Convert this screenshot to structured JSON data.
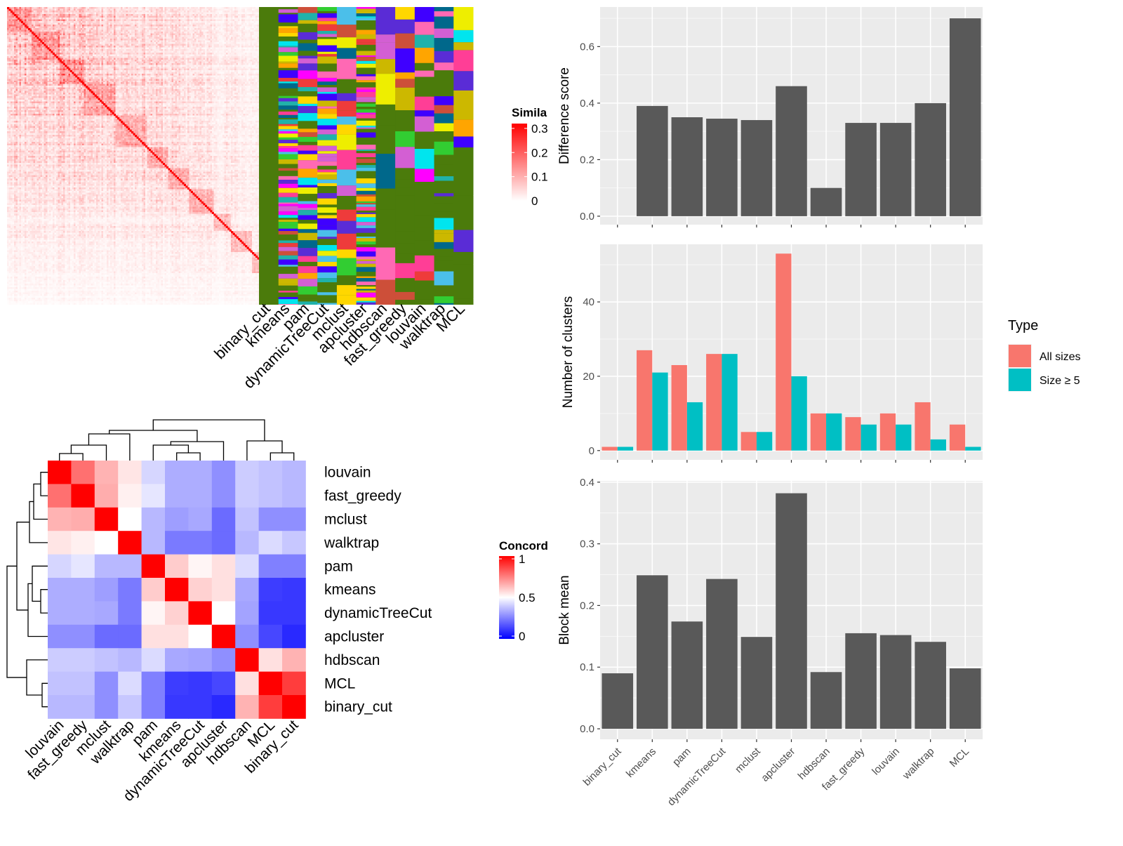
{
  "chart_data": [
    {
      "type": "heatmap",
      "panel": "similarity-heatmap",
      "legend_title": "Simila",
      "legend_ticks": [
        0.3,
        0.2,
        0.1,
        0
      ],
      "legend_tick_labels": [
        "0.3",
        "0.2",
        "0.1",
        "0"
      ],
      "n_terms": 170,
      "colors": {
        "low": "#ffffff",
        "high": "#ff0000"
      }
    },
    {
      "type": "heatmap",
      "panel": "cluster-assignment-heatmap",
      "methods": [
        "binary_cut",
        "kmeans",
        "pam",
        "dynamicTreeCut",
        "mclust",
        "apcluster",
        "hdbscan",
        "fast_greedy",
        "louvain",
        "walktrap",
        "MCL"
      ],
      "colors": {
        "background": "#4b7b0b",
        "palette": [
          "#ff00ff",
          "#00e5ee",
          "#4b7b0b",
          "#ffa500",
          "#5a2cd6",
          "#ee3b3b",
          "#d35fd3",
          "#00688b",
          "#eeee00",
          "#4bbfea",
          "#ccb800",
          "#ff69b4",
          "#32cd32",
          "#cd4f39",
          "#20b2aa",
          "#3f00ff",
          "#ffd700",
          "#ff3e96"
        ]
      }
    },
    {
      "type": "heatmap",
      "panel": "concordance-heatmap",
      "legend_title": "Concord",
      "legend_ticks": [
        1,
        0.5,
        0
      ],
      "legend_tick_labels": [
        "1",
        "0.5",
        "0"
      ],
      "rows": [
        "louvain",
        "fast_greedy",
        "mclust",
        "walktrap",
        "pam",
        "kmeans",
        "dynamicTreeCut",
        "apcluster",
        "hdbscan",
        "MCL",
        "binary_cut"
      ],
      "columns": [
        "louvain",
        "fast_greedy",
        "mclust",
        "walktrap",
        "pam",
        "kmeans",
        "dynamicTreeCut",
        "apcluster",
        "hdbscan",
        "MCL",
        "binary_cut"
      ],
      "values": [
        [
          1.0,
          0.78,
          0.65,
          0.55,
          0.42,
          0.34,
          0.34,
          0.28,
          0.4,
          0.38,
          0.36
        ],
        [
          0.78,
          1.0,
          0.66,
          0.53,
          0.45,
          0.34,
          0.34,
          0.28,
          0.4,
          0.38,
          0.36
        ],
        [
          0.65,
          0.66,
          1.0,
          0.5,
          0.36,
          0.31,
          0.33,
          0.21,
          0.38,
          0.28,
          0.28
        ],
        [
          0.55,
          0.53,
          0.5,
          1.0,
          0.36,
          0.24,
          0.24,
          0.21,
          0.36,
          0.43,
          0.39
        ],
        [
          0.42,
          0.45,
          0.36,
          0.36,
          1.0,
          0.6,
          0.52,
          0.56,
          0.43,
          0.25,
          0.25
        ],
        [
          0.34,
          0.34,
          0.31,
          0.24,
          0.6,
          1.0,
          0.59,
          0.56,
          0.33,
          0.12,
          0.11
        ],
        [
          0.34,
          0.34,
          0.33,
          0.24,
          0.52,
          0.59,
          1.0,
          0.5,
          0.32,
          0.11,
          0.11
        ],
        [
          0.28,
          0.28,
          0.21,
          0.21,
          0.56,
          0.56,
          0.5,
          1.0,
          0.28,
          0.14,
          0.08
        ],
        [
          0.4,
          0.4,
          0.38,
          0.36,
          0.43,
          0.33,
          0.32,
          0.28,
          1.0,
          0.56,
          0.65
        ],
        [
          0.38,
          0.38,
          0.28,
          0.43,
          0.25,
          0.12,
          0.11,
          0.14,
          0.56,
          1.0,
          0.88
        ],
        [
          0.36,
          0.36,
          0.28,
          0.39,
          0.25,
          0.11,
          0.11,
          0.08,
          0.65,
          0.88,
          1.0
        ]
      ],
      "colors": {
        "low": "#0000ff",
        "mid": "#ffffff",
        "high": "#ff0000"
      }
    },
    {
      "type": "bar",
      "panel": "difference-score",
      "categories": [
        "binary_cut",
        "kmeans",
        "pam",
        "dynamicTreeCut",
        "mclust",
        "apcluster",
        "hdbscan",
        "fast_greedy",
        "louvain",
        "walktrap",
        "MCL"
      ],
      "values": [
        0.0,
        0.39,
        0.35,
        0.345,
        0.34,
        0.46,
        0.1,
        0.33,
        0.33,
        0.4,
        0.7
      ],
      "ylabel": "Difference score",
      "ylim": [
        -0.03,
        0.74
      ],
      "yticks": [
        0.0,
        0.2,
        0.4,
        0.6
      ],
      "ytick_labels": [
        "0.0",
        "0.2",
        "0.4",
        "0.6"
      ],
      "grid": true,
      "colors": {
        "bar": "#595959",
        "panel": "#ebebeb",
        "grid": "#ffffff"
      }
    },
    {
      "type": "bar",
      "panel": "number-of-clusters",
      "categories": [
        "binary_cut",
        "kmeans",
        "pam",
        "dynamicTreeCut",
        "mclust",
        "apcluster",
        "hdbscan",
        "fast_greedy",
        "louvain",
        "walktrap",
        "MCL"
      ],
      "series": [
        {
          "name": "All sizes",
          "values": [
            1,
            27,
            23,
            26,
            5,
            53,
            10,
            9,
            10,
            13,
            7
          ]
        },
        {
          "name": "Size ≥ 5",
          "values": [
            1,
            21,
            13,
            26,
            5,
            20,
            10,
            7,
            7,
            3,
            1
          ]
        }
      ],
      "ylabel": "Number of clusters",
      "ylim": [
        -2.5,
        55.5
      ],
      "yticks": [
        0,
        20,
        40
      ],
      "ytick_labels": [
        "0",
        "20",
        "40"
      ],
      "legend_title": "Type",
      "legend_position": "right",
      "grid": true,
      "colors": {
        "series": [
          "#f8766d",
          "#00bfc4"
        ],
        "panel": "#ebebeb",
        "grid": "#ffffff"
      }
    },
    {
      "type": "bar",
      "panel": "block-mean",
      "categories": [
        "binary_cut",
        "kmeans",
        "pam",
        "dynamicTreeCut",
        "mclust",
        "apcluster",
        "hdbscan",
        "fast_greedy",
        "louvain",
        "walktrap",
        "MCL"
      ],
      "values": [
        0.09,
        0.249,
        0.174,
        0.243,
        0.149,
        0.382,
        0.092,
        0.155,
        0.152,
        0.141,
        0.098
      ],
      "ylabel": "Block mean",
      "ylim": [
        -0.017,
        0.402
      ],
      "yticks": [
        0.0,
        0.1,
        0.2,
        0.3,
        0.4
      ],
      "ytick_labels": [
        "0.0",
        "0.1",
        "0.2",
        "0.3",
        "0.4"
      ],
      "grid": true,
      "colors": {
        "bar": "#595959",
        "panel": "#ebebeb",
        "grid": "#ffffff"
      }
    }
  ]
}
